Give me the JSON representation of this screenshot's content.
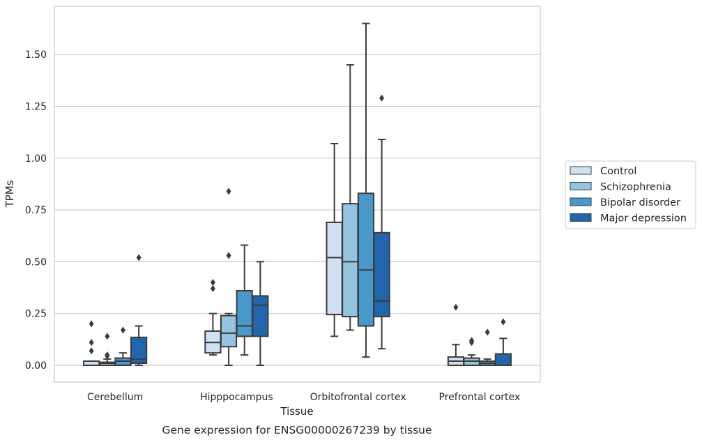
{
  "chart_data": {
    "type": "boxplot",
    "caption": "Gene expression for ENSG00000267239 by tissue",
    "xlabel": "Tissue",
    "ylabel": "TPMs",
    "ylim": [
      -0.08,
      1.73
    ],
    "yticks": [
      "0.00",
      "0.25",
      "0.50",
      "0.75",
      "1.00",
      "1.25",
      "1.50"
    ],
    "grid": "horizontal",
    "legend_position": "right",
    "categories": [
      "Cerebellum",
      "Hipppocampus",
      "Orbitofrontal cortex",
      "Prefrontal cortex"
    ],
    "series": [
      {
        "name": "Control",
        "color": "#d0e1f2",
        "boxes": [
          {
            "whislo": 0.0,
            "q1": 0.0,
            "med": 0.0,
            "q3": 0.02,
            "whishi": 0.02,
            "fliers": [
              0.07,
              0.11,
              0.2
            ]
          },
          {
            "whislo": 0.05,
            "q1": 0.06,
            "med": 0.11,
            "q3": 0.165,
            "whishi": 0.25,
            "fliers": [
              0.37,
              0.4
            ]
          },
          {
            "whislo": 0.14,
            "q1": 0.245,
            "med": 0.52,
            "q3": 0.69,
            "whishi": 1.07,
            "fliers": []
          },
          {
            "whislo": 0.0,
            "q1": 0.0,
            "med": 0.02,
            "q3": 0.04,
            "whishi": 0.1,
            "fliers": [
              0.28
            ]
          }
        ]
      },
      {
        "name": "Schizophrenia",
        "color": "#94c4df",
        "boxes": [
          {
            "whislo": 0.0,
            "q1": 0.0,
            "med": 0.01,
            "q3": 0.015,
            "whishi": 0.03,
            "fliers": [
              0.045,
              0.05,
              0.14
            ]
          },
          {
            "whislo": 0.0,
            "q1": 0.09,
            "med": 0.155,
            "q3": 0.24,
            "whishi": 0.25,
            "fliers": [
              0.53,
              0.84
            ]
          },
          {
            "whislo": 0.17,
            "q1": 0.235,
            "med": 0.5,
            "q3": 0.78,
            "whishi": 1.45,
            "fliers": []
          },
          {
            "whislo": 0.0,
            "q1": 0.0,
            "med": 0.02,
            "q3": 0.035,
            "whishi": 0.05,
            "fliers": [
              0.11,
              0.12
            ]
          }
        ]
      },
      {
        "name": "Bipolar disorder",
        "color": "#4a98c9",
        "boxes": [
          {
            "whislo": 0.0,
            "q1": 0.0,
            "med": 0.02,
            "q3": 0.035,
            "whishi": 0.06,
            "fliers": [
              0.17
            ]
          },
          {
            "whislo": 0.05,
            "q1": 0.14,
            "med": 0.19,
            "q3": 0.36,
            "whishi": 0.58,
            "fliers": []
          },
          {
            "whislo": 0.04,
            "q1": 0.19,
            "med": 0.46,
            "q3": 0.83,
            "whishi": 1.65,
            "fliers": []
          },
          {
            "whislo": 0.0,
            "q1": 0.0,
            "med": 0.01,
            "q3": 0.02,
            "whishi": 0.03,
            "fliers": [
              0.16
            ]
          }
        ]
      },
      {
        "name": "Major depression",
        "color": "#2166ac",
        "boxes": [
          {
            "whislo": 0.0,
            "q1": 0.01,
            "med": 0.03,
            "q3": 0.135,
            "whishi": 0.19,
            "fliers": [
              0.52
            ]
          },
          {
            "whislo": 0.0,
            "q1": 0.14,
            "med": 0.29,
            "q3": 0.335,
            "whishi": 0.5,
            "fliers": []
          },
          {
            "whislo": 0.08,
            "q1": 0.235,
            "med": 0.31,
            "q3": 0.64,
            "whishi": 1.09,
            "fliers": [
              1.29
            ]
          },
          {
            "whislo": 0.0,
            "q1": 0.0,
            "med": 0.0,
            "q3": 0.055,
            "whishi": 0.13,
            "fliers": [
              0.21
            ]
          }
        ]
      }
    ]
  }
}
